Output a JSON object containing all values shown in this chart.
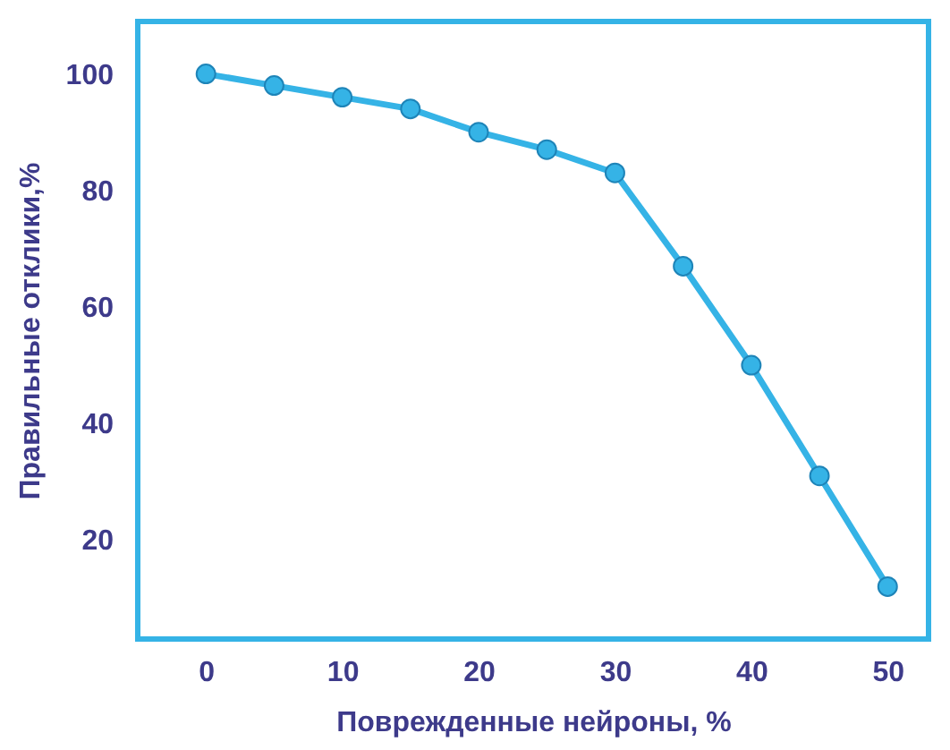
{
  "chart_data": {
    "type": "line",
    "xlabel": "Поврежденные нейроны, %",
    "ylabel": "Правильные отклики,%",
    "x": [
      0,
      5,
      10,
      15,
      20,
      25,
      30,
      35,
      40,
      45,
      50
    ],
    "series": [
      {
        "color": "#35b3e6",
        "values": [
          100,
          98,
          96,
          94,
          90,
          87,
          83,
          67,
          50,
          31,
          12
        ]
      }
    ],
    "xlim": [
      -5,
      53
    ],
    "ylim": [
      3,
      109
    ],
    "xticks": [
      0,
      10,
      20,
      30,
      40,
      50
    ],
    "yticks": [
      20,
      40,
      60,
      80,
      100
    ],
    "marker": "circle",
    "line_style": "solid",
    "grid": false
  }
}
